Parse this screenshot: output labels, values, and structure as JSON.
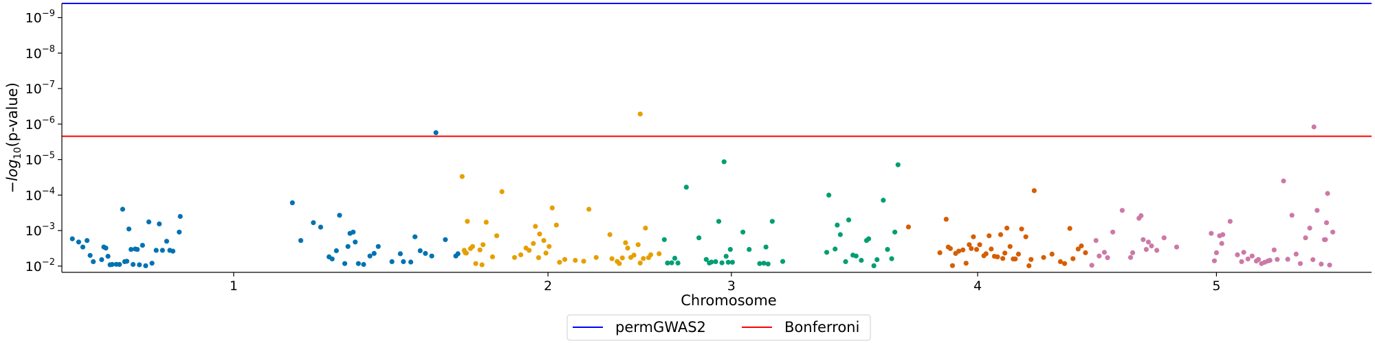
{
  "chart_data": {
    "type": "scatter",
    "chart_kind": "manhattan",
    "title": "",
    "xlabel": "Chromosome",
    "ylabel_parts": {
      "prefix": "−",
      "func": "log",
      "sub": "10",
      "suffix": "(p-value)"
    },
    "y_scale": "log_reversed",
    "y_ticks": [
      {
        "label": "10",
        "exp": "−9",
        "value": 1e-09
      },
      {
        "label": "10",
        "exp": "−8",
        "value": 1e-08
      },
      {
        "label": "10",
        "exp": "−7",
        "value": 1e-07
      },
      {
        "label": "10",
        "exp": "−6",
        "value": 1e-06
      },
      {
        "label": "10",
        "exp": "−5",
        "value": 1e-05
      },
      {
        "label": "10",
        "exp": "−4",
        "value": 0.0001
      },
      {
        "label": "10",
        "exp": "−3",
        "value": 0.001
      },
      {
        "label": "10",
        "exp": "−2",
        "value": 0.01
      }
    ],
    "ylim": [
      0.015,
      4e-10
    ],
    "xlim": [
      -0.6,
      11.9
    ],
    "x_ticks": [
      {
        "label": "1",
        "x": 1.04
      },
      {
        "label": "2",
        "x": 4.04
      },
      {
        "label": "3",
        "x": 5.79
      },
      {
        "label": "4",
        "x": 8.14
      },
      {
        "label": "5",
        "x": 10.42
      }
    ],
    "thresholds": [
      {
        "name": "permGWAS2",
        "value": 4e-10,
        "color": "#0000ff"
      },
      {
        "name": "Bonferroni",
        "value": 2.2e-06,
        "color": "#ff0000"
      }
    ],
    "legend": {
      "placement": "bottom-center",
      "entries": [
        "permGWAS2",
        "Bonferroni"
      ]
    },
    "grid": false,
    "series": [
      {
        "chromosome": "1",
        "color": "#0072b2",
        "points": [
          [
            -0.5,
            0.0017
          ],
          [
            -0.44,
            0.0021
          ],
          [
            -0.4,
            0.0029
          ],
          [
            -0.36,
            0.0019
          ],
          [
            -0.33,
            0.005
          ],
          [
            -0.3,
            0.0075
          ],
          [
            -0.22,
            0.0066
          ],
          [
            -0.2,
            0.0029
          ],
          [
            -0.18,
            0.0031
          ],
          [
            -0.16,
            0.0053
          ],
          [
            -0.14,
            0.0092
          ],
          [
            -0.12,
            0.009
          ],
          [
            -0.08,
            0.0089
          ],
          [
            -0.05,
            0.009
          ],
          [
            -0.02,
            0.00025
          ],
          [
            0.0,
            0.0075
          ],
          [
            0.02,
            0.0073
          ],
          [
            0.04,
            0.0009
          ],
          [
            0.06,
            0.0034
          ],
          [
            0.08,
            0.009
          ],
          [
            0.1,
            0.0033
          ],
          [
            0.12,
            0.0034
          ],
          [
            0.14,
            0.0092
          ],
          [
            0.17,
            0.0026
          ],
          [
            0.2,
            0.0098
          ],
          [
            0.23,
            0.00057
          ],
          [
            0.26,
            0.0083
          ],
          [
            0.3,
            0.0036
          ],
          [
            0.33,
            0.00065
          ],
          [
            0.36,
            0.0036
          ],
          [
            0.4,
            0.002
          ],
          [
            0.43,
            0.0036
          ],
          [
            0.46,
            0.0038
          ],
          [
            0.52,
            0.0011
          ],
          [
            0.53,
            0.0004
          ],
          [
            1.6,
            0.000165
          ],
          [
            1.68,
            0.0019
          ],
          [
            1.8,
            0.0006
          ],
          [
            1.87,
            0.0008
          ],
          [
            1.95,
            0.0055
          ],
          [
            1.98,
            0.0063
          ],
          [
            2.02,
            0.0037
          ],
          [
            2.05,
            0.00037
          ],
          [
            2.1,
            0.0085
          ],
          [
            2.13,
            0.0028
          ],
          [
            2.15,
            0.0012
          ],
          [
            2.18,
            0.0011
          ],
          [
            2.2,
            0.0021
          ],
          [
            2.23,
            0.0085
          ],
          [
            2.28,
            0.009
          ],
          [
            2.34,
            0.0052
          ],
          [
            2.38,
            0.0044
          ],
          [
            2.42,
            0.0028
          ],
          [
            2.55,
            0.0075
          ],
          [
            2.63,
            0.0045
          ],
          [
            2.66,
            0.0075
          ],
          [
            2.73,
            0.0077
          ],
          [
            2.77,
            0.0015
          ],
          [
            2.82,
            0.0037
          ],
          [
            2.87,
            0.0044
          ],
          [
            2.93,
            0.0052
          ],
          [
            3.06,
            0.0018
          ],
          [
            3.16,
            0.0052
          ],
          [
            3.18,
            0.0045
          ],
          [
            2.97,
            1.75e-06
          ]
        ]
      },
      {
        "chromosome": "2",
        "color": "#e69f00",
        "points": [
          [
            3.22,
            3e-05
          ],
          [
            3.24,
            0.0036
          ],
          [
            3.25,
            0.0042
          ],
          [
            3.26,
            0.0043
          ],
          [
            3.27,
            0.00055
          ],
          [
            3.3,
            0.0032
          ],
          [
            3.32,
            0.0028
          ],
          [
            3.35,
            0.0085
          ],
          [
            3.39,
            0.0035
          ],
          [
            3.41,
            0.0092
          ],
          [
            3.42,
            0.0025
          ],
          [
            3.45,
            0.00058
          ],
          [
            3.51,
            0.0055
          ],
          [
            3.55,
            0.0014
          ],
          [
            3.6,
            8e-05
          ],
          [
            3.72,
            0.0057
          ],
          [
            3.78,
            0.0048
          ],
          [
            3.83,
            0.0031
          ],
          [
            3.86,
            0.0036
          ],
          [
            3.9,
            0.0023
          ],
          [
            3.92,
            0.00076
          ],
          [
            3.95,
            0.0058
          ],
          [
            3.96,
            0.00125
          ],
          [
            4.0,
            0.0019
          ],
          [
            4.02,
            0.0043
          ],
          [
            4.05,
            0.0028
          ],
          [
            4.08,
            0.00023
          ],
          [
            4.12,
            0.0007
          ],
          [
            4.15,
            0.0078
          ],
          [
            4.2,
            0.0065
          ],
          [
            4.3,
            0.0069
          ],
          [
            4.38,
            0.0073
          ],
          [
            4.43,
            0.00025
          ],
          [
            4.5,
            0.0057
          ],
          [
            4.63,
            0.0013
          ],
          [
            4.65,
            0.0062
          ],
          [
            4.7,
            0.0074
          ],
          [
            4.72,
            0.0085
          ],
          [
            4.75,
            0.0059
          ],
          [
            4.78,
            0.0022
          ],
          [
            4.8,
            0.0031
          ],
          [
            4.83,
            0.0057
          ],
          [
            4.86,
            0.0049
          ],
          [
            4.9,
            0.0025
          ],
          [
            4.92,
            0.0082
          ],
          [
            4.95,
            0.0061
          ],
          [
            4.97,
            0.00085
          ],
          [
            5.0,
            0.0058
          ],
          [
            5.02,
            0.0048
          ],
          [
            5.1,
            0.0045
          ],
          [
            4.92,
            5.2e-07
          ]
        ]
      },
      {
        "chromosome": "3",
        "color": "#009e73",
        "points": [
          [
            5.15,
            0.0018
          ],
          [
            5.18,
            0.0082
          ],
          [
            5.22,
            0.0081
          ],
          [
            5.25,
            0.006
          ],
          [
            5.28,
            0.0082
          ],
          [
            5.36,
            6e-05
          ],
          [
            5.48,
            0.0016
          ],
          [
            5.55,
            0.0065
          ],
          [
            5.58,
            0.0082
          ],
          [
            5.6,
            0.0077
          ],
          [
            5.64,
            0.0075
          ],
          [
            5.67,
            0.00055
          ],
          [
            5.7,
            0.0081
          ],
          [
            5.72,
            1.15e-05
          ],
          [
            5.74,
            0.0053
          ],
          [
            5.76,
            0.0078
          ],
          [
            5.78,
            0.0034
          ],
          [
            5.8,
            0.0078
          ],
          [
            5.9,
            0.0011
          ],
          [
            5.96,
            0.0034
          ],
          [
            6.06,
            0.0085
          ],
          [
            6.1,
            0.0083
          ],
          [
            6.12,
            0.0029
          ],
          [
            6.14,
            0.0087
          ],
          [
            6.18,
            0.00055
          ],
          [
            6.28,
            0.0074
          ],
          [
            6.7,
            0.0041
          ],
          [
            6.72,
            0.0001
          ],
          [
            6.78,
            0.0033
          ],
          [
            6.8,
            0.0007
          ],
          [
            6.83,
            0.0013
          ],
          [
            6.88,
            0.0075
          ],
          [
            6.91,
            0.0005
          ],
          [
            6.95,
            0.0049
          ],
          [
            6.98,
            0.0052
          ],
          [
            7.03,
            0.0069
          ],
          [
            7.08,
            0.0019
          ],
          [
            7.1,
            0.0017
          ],
          [
            7.15,
            0.0098
          ],
          [
            7.18,
            0.0066
          ],
          [
            7.24,
            0.00014
          ],
          [
            7.28,
            0.0034
          ],
          [
            7.32,
            0.0062
          ],
          [
            7.35,
            0.0011
          ],
          [
            7.38,
            1.4e-05
          ]
        ]
      },
      {
        "chromosome": "4",
        "color": "#d55e00",
        "points": [
          [
            7.48,
            0.00079
          ],
          [
            7.78,
            0.0042
          ],
          [
            7.84,
            0.00048
          ],
          [
            7.86,
            0.0029
          ],
          [
            7.88,
            0.0032
          ],
          [
            7.9,
            0.0097
          ],
          [
            7.93,
            0.0044
          ],
          [
            7.96,
            0.0038
          ],
          [
            8.0,
            0.0035
          ],
          [
            8.03,
            0.0083
          ],
          [
            8.06,
            0.0025
          ],
          [
            8.08,
            0.0032
          ],
          [
            8.1,
            0.0015
          ],
          [
            8.13,
            0.0034
          ],
          [
            8.16,
            0.0025
          ],
          [
            8.2,
            0.0051
          ],
          [
            8.22,
            0.0045
          ],
          [
            8.25,
            0.0014
          ],
          [
            8.27,
            0.0033
          ],
          [
            8.3,
            0.0053
          ],
          [
            8.33,
            0.0055
          ],
          [
            8.36,
            0.0013
          ],
          [
            8.38,
            0.0061
          ],
          [
            8.4,
            0.0043
          ],
          [
            8.42,
            0.00085
          ],
          [
            8.45,
            0.0028
          ],
          [
            8.48,
            0.0063
          ],
          [
            8.5,
            0.0063
          ],
          [
            8.53,
            0.0046
          ],
          [
            8.56,
            0.0009
          ],
          [
            8.6,
            0.0015
          ],
          [
            8.63,
            0.0098
          ],
          [
            8.65,
            0.0065
          ],
          [
            8.68,
            7.5e-05
          ],
          [
            8.77,
            0.0057
          ],
          [
            8.85,
            0.0046
          ],
          [
            8.93,
            0.0075
          ],
          [
            8.97,
            0.0085
          ],
          [
            9.02,
            0.00087
          ],
          [
            9.05,
            0.0062
          ],
          [
            9.1,
            0.0033
          ],
          [
            9.13,
            0.0027
          ],
          [
            9.17,
            0.0042
          ]
        ]
      },
      {
        "chromosome": "5",
        "color": "#cc79a7",
        "points": [
          [
            9.23,
            0.0095
          ],
          [
            9.27,
            0.0019
          ],
          [
            9.3,
            0.0052
          ],
          [
            9.35,
            0.0041
          ],
          [
            9.38,
            0.0058
          ],
          [
            9.43,
            0.0011
          ],
          [
            9.52,
            0.00027
          ],
          [
            9.6,
            0.0057
          ],
          [
            9.62,
            0.0042
          ],
          [
            9.68,
            0.00045
          ],
          [
            9.7,
            0.00038
          ],
          [
            9.72,
            0.0018
          ],
          [
            9.75,
            0.0034
          ],
          [
            9.77,
            0.0021
          ],
          [
            9.8,
            0.0027
          ],
          [
            9.85,
            0.0036
          ],
          [
            9.92,
            0.0016
          ],
          [
            10.04,
            0.0029
          ],
          [
            10.37,
            0.0012
          ],
          [
            10.4,
            0.0071
          ],
          [
            10.42,
            0.0042
          ],
          [
            10.45,
            0.0014
          ],
          [
            10.47,
            0.0023
          ],
          [
            10.48,
            0.0013
          ],
          [
            10.55,
            0.00055
          ],
          [
            10.62,
            0.0048
          ],
          [
            10.66,
            0.0075
          ],
          [
            10.68,
            0.0041
          ],
          [
            10.72,
            0.0063
          ],
          [
            10.76,
            0.0052
          ],
          [
            10.8,
            0.0072
          ],
          [
            10.82,
            0.0065
          ],
          [
            10.85,
            0.0085
          ],
          [
            10.88,
            0.0078
          ],
          [
            10.91,
            0.0072
          ],
          [
            10.93,
            0.0069
          ],
          [
            10.97,
            0.0035
          ],
          [
            11.0,
            0.0065
          ],
          [
            11.06,
            4e-05
          ],
          [
            11.1,
            0.0064
          ],
          [
            11.14,
            0.00037
          ],
          [
            11.18,
            0.0046
          ],
          [
            11.22,
            0.0085
          ],
          [
            11.27,
            0.0016
          ],
          [
            11.31,
            0.00085
          ],
          [
            11.34,
            0.0066
          ],
          [
            11.38,
            0.00027
          ],
          [
            11.42,
            0.0088
          ],
          [
            11.45,
            0.0018
          ],
          [
            11.46,
            0.0018
          ],
          [
            11.47,
            0.0006
          ],
          [
            11.48,
            9e-05
          ],
          [
            11.5,
            0.0093
          ],
          [
            11.53,
            0.0011
          ],
          [
            11.35,
            1.2e-06
          ]
        ]
      }
    ]
  }
}
